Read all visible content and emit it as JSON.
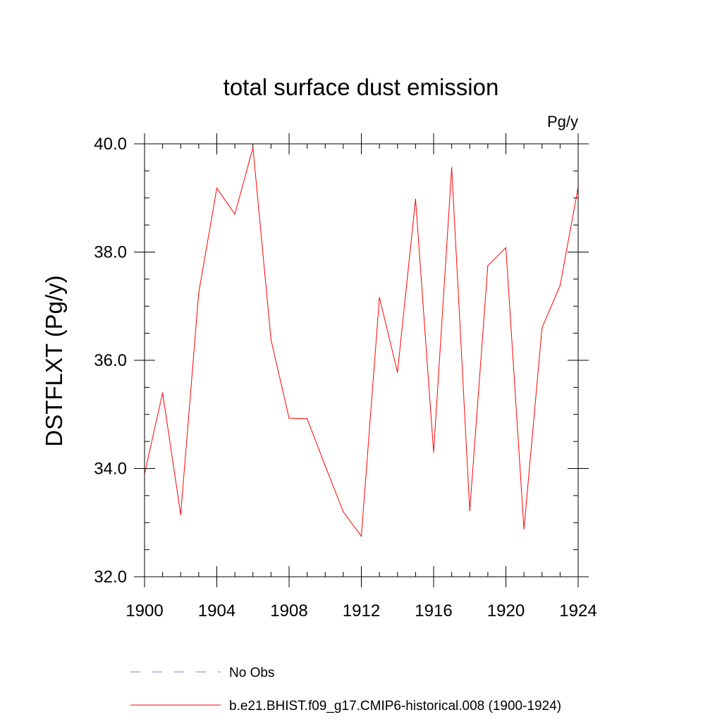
{
  "chart_data": {
    "type": "line",
    "title": "total surface dust emission",
    "units_label": "Pg/y",
    "xlabel": "",
    "ylabel": "DSTFLXT  (Pg/y)",
    "xlim": [
      1900,
      1924
    ],
    "ylim": [
      32.0,
      40.0
    ],
    "x_major_ticks": [
      1900,
      1904,
      1908,
      1912,
      1916,
      1920,
      1924
    ],
    "x_tick_labels": [
      "1900",
      "1904",
      "1908",
      "1912",
      "1916",
      "1920",
      "1924"
    ],
    "y_major_ticks": [
      32,
      34,
      36,
      38,
      40
    ],
    "y_tick_labels": [
      "32.0",
      "34.0",
      "36.0",
      "38.0",
      "40.0"
    ],
    "y_minor_step": 0.5,
    "x_minor_step": 1,
    "grid": false,
    "series": [
      {
        "name": "b.e21.BHIST.f09_g17.CMIP6-historical.008 (1900-1924)",
        "color": "#ff0000",
        "style": "solid",
        "x": [
          1900,
          1901,
          1902,
          1903,
          1904,
          1905,
          1906,
          1907,
          1908,
          1909,
          1910,
          1911,
          1912,
          1913,
          1914,
          1915,
          1916,
          1917,
          1918,
          1919,
          1920,
          1921,
          1922,
          1923,
          1924
        ],
        "y": [
          33.9,
          35.4,
          33.15,
          37.25,
          39.18,
          38.7,
          39.93,
          36.38,
          34.93,
          34.92,
          34.05,
          33.2,
          32.75,
          37.16,
          35.78,
          38.98,
          34.3,
          39.56,
          33.22,
          37.75,
          38.08,
          32.88,
          36.6,
          37.38,
          39.2
        ]
      }
    ],
    "legend": [
      {
        "label": "No Obs",
        "color": "#8080c0",
        "style": "dashed"
      },
      {
        "label": "b.e21.BHIST.f09_g17.CMIP6-historical.008 (1900-1924)",
        "color": "#ff0000",
        "style": "solid"
      }
    ],
    "legend_position": "bottom"
  }
}
